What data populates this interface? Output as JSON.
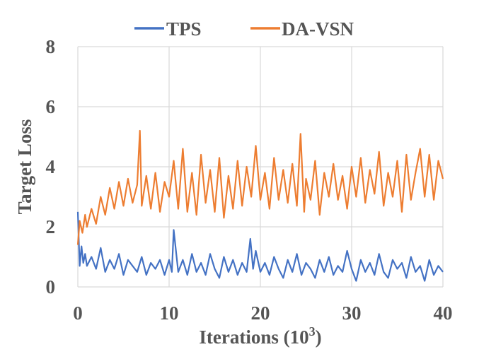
{
  "chart_data": {
    "type": "line",
    "title": "",
    "xlabel": "Iterations (10",
    "xlabel_sup": "3",
    "xlabel_close": ")",
    "ylabel": "Target  Loss",
    "xlim": [
      0,
      40
    ],
    "ylim": [
      0,
      8
    ],
    "xticks": [
      "0",
      "10",
      "20",
      "30",
      "40"
    ],
    "xtick_values": [
      0,
      10,
      20,
      30,
      40
    ],
    "yticks": [
      "0",
      "2",
      "4",
      "6",
      "8"
    ],
    "ytick_values": [
      0,
      2,
      4,
      6,
      8
    ],
    "grid": true,
    "legend_position": "top",
    "series": [
      {
        "name": "TPS",
        "color": "#4472C4",
        "x": [
          0,
          0.2,
          0.4,
          0.6,
          0.8,
          1,
          1.5,
          2,
          2.5,
          3,
          3.5,
          4,
          4.5,
          5,
          5.5,
          6,
          6.5,
          7,
          7.5,
          8,
          8.5,
          9,
          9.5,
          10,
          10.3,
          10.5,
          11,
          11.5,
          12,
          12.5,
          13,
          13.5,
          14,
          14.5,
          15,
          15.5,
          16,
          16.5,
          17,
          17.5,
          18,
          18.5,
          18.9,
          19.2,
          19.5,
          20,
          20.5,
          21,
          21.5,
          22,
          22.5,
          23,
          23.5,
          24,
          24.5,
          25,
          25.5,
          26,
          26.5,
          27,
          27.5,
          28,
          28.5,
          29,
          29.5,
          30,
          30.5,
          31,
          31.5,
          32,
          32.5,
          33,
          33.5,
          34,
          34.5,
          35,
          35.5,
          36,
          36.5,
          37,
          37.5,
          38,
          38.5,
          39,
          39.5,
          40
        ],
        "y": [
          2.5,
          0.7,
          1.35,
          0.8,
          1.1,
          0.7,
          1.0,
          0.6,
          1.3,
          0.5,
          0.9,
          0.6,
          1.1,
          0.4,
          0.9,
          0.7,
          0.5,
          1.0,
          0.4,
          0.8,
          0.6,
          0.9,
          0.4,
          0.9,
          0.5,
          1.9,
          0.5,
          0.9,
          0.4,
          1.1,
          0.5,
          0.8,
          0.4,
          1.1,
          0.6,
          0.3,
          1.0,
          0.5,
          0.9,
          0.4,
          0.8,
          0.5,
          1.6,
          0.6,
          1.2,
          0.5,
          0.8,
          0.4,
          1.0,
          0.6,
          0.3,
          0.9,
          0.5,
          1.1,
          0.4,
          0.8,
          0.6,
          0.3,
          0.9,
          0.5,
          1.0,
          0.4,
          0.7,
          0.5,
          1.2,
          0.6,
          0.2,
          0.9,
          0.5,
          0.8,
          0.4,
          1.1,
          0.5,
          0.3,
          0.9,
          0.6,
          0.8,
          0.3,
          1.0,
          0.5,
          0.7,
          0.2,
          0.9,
          0.4,
          0.7,
          0.5
        ]
      },
      {
        "name": "DA-VSN",
        "color": "#ED7D31",
        "x": [
          0,
          0.2,
          0.5,
          0.8,
          1,
          1.5,
          2,
          2.5,
          3,
          3.5,
          4,
          4.5,
          5,
          5.5,
          6,
          6.5,
          6.8,
          7,
          7.5,
          8,
          8.5,
          9,
          9.5,
          10,
          10.5,
          11,
          11.5,
          12,
          12.5,
          13,
          13.5,
          14,
          14.5,
          15,
          15.5,
          16,
          16.5,
          17,
          17.5,
          18,
          18.5,
          19,
          19.5,
          20,
          20.5,
          21,
          21.5,
          22,
          22.5,
          23,
          23.5,
          24,
          24.4,
          24.8,
          25,
          25.5,
          26,
          26.5,
          27,
          27.5,
          28,
          28.5,
          29,
          29.5,
          30,
          30.5,
          31,
          31.5,
          32,
          32.5,
          33,
          33.5,
          34,
          34.5,
          35,
          35.5,
          36,
          36.5,
          37,
          37.5,
          38,
          38.5,
          39,
          39.5,
          40
        ],
        "y": [
          1.4,
          2.2,
          1.8,
          2.4,
          2.0,
          2.6,
          2.1,
          3.0,
          2.4,
          3.3,
          2.6,
          3.5,
          2.7,
          3.6,
          2.8,
          3.4,
          5.2,
          2.7,
          3.7,
          2.6,
          3.8,
          2.5,
          3.5,
          3.0,
          4.2,
          2.6,
          4.6,
          2.5,
          3.8,
          2.4,
          4.4,
          2.8,
          3.9,
          2.5,
          4.3,
          2.3,
          3.7,
          2.6,
          4.2,
          2.7,
          4.0,
          3.0,
          4.7,
          2.9,
          3.8,
          2.6,
          4.3,
          2.9,
          3.9,
          2.8,
          4.1,
          2.7,
          5.1,
          2.5,
          3.6,
          2.9,
          4.2,
          2.4,
          3.8,
          3.0,
          4.1,
          2.9,
          3.7,
          2.6,
          4.0,
          3.0,
          4.3,
          2.8,
          3.9,
          3.1,
          4.5,
          2.7,
          3.8,
          3.0,
          4.2,
          2.5,
          4.4,
          2.9,
          3.8,
          4.6,
          3.0,
          4.4,
          2.9,
          4.2,
          3.6
        ]
      }
    ]
  }
}
